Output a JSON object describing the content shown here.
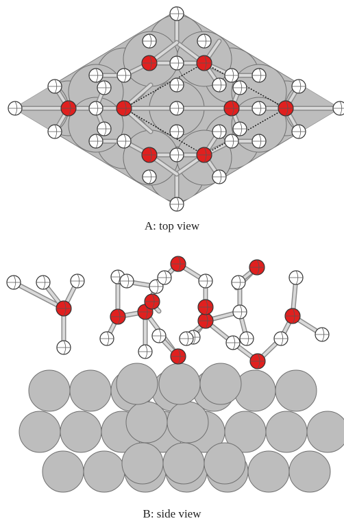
{
  "figure": {
    "panel_a_caption": "A:  top view",
    "panel_b_caption": "B:  side view"
  },
  "colors": {
    "oxygen": "#e0201f",
    "hydrogen": "#ffffff",
    "metal": "#bdbdbd"
  }
}
